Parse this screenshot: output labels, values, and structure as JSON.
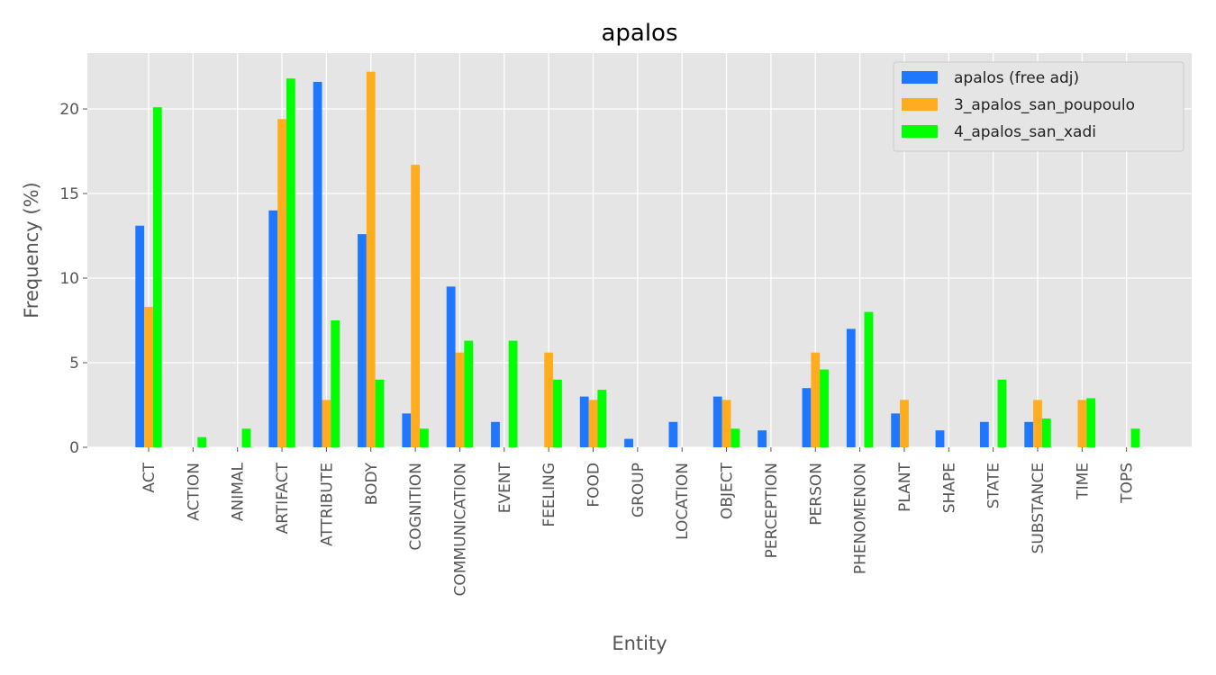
{
  "chart_data": {
    "type": "bar",
    "title": "apalos",
    "xlabel": "Entity",
    "ylabel": "Frequency (%)",
    "ylim": [
      0,
      23.3
    ],
    "yticks": [
      0,
      5,
      10,
      15,
      20
    ],
    "grid": true,
    "legend_position": "top-right",
    "categories": [
      "ACT",
      "ACTION",
      "ANIMAL",
      "ARTIFACT",
      "ATTRIBUTE",
      "BODY",
      "COGNITION",
      "COMMUNICATION",
      "EVENT",
      "FEELING",
      "FOOD",
      "GROUP",
      "LOCATION",
      "OBJECT",
      "PERCEPTION",
      "PERSON",
      "PHENOMENON",
      "PLANT",
      "SHAPE",
      "STATE",
      "SUBSTANCE",
      "TIME",
      "TOPS"
    ],
    "series": [
      {
        "name": "apalos (free adj)",
        "color": "#1f77ff",
        "values": [
          13.1,
          0,
          0,
          14.0,
          21.6,
          12.6,
          2.0,
          9.5,
          1.5,
          0,
          3.0,
          0.5,
          1.5,
          3.0,
          1.0,
          3.5,
          7.0,
          2.0,
          1.0,
          1.5,
          1.5,
          0,
          0
        ]
      },
      {
        "name": "3_apalos_san_poupoulo",
        "color": "#ffad1f",
        "values": [
          8.3,
          0,
          0,
          19.4,
          2.8,
          22.2,
          16.7,
          5.6,
          0,
          5.6,
          2.8,
          0,
          0,
          2.8,
          0,
          5.6,
          0,
          2.8,
          0,
          0,
          2.8,
          2.8,
          0
        ]
      },
      {
        "name": "4_apalos_san_xadi",
        "color": "#00ff00",
        "values": [
          20.1,
          0.6,
          1.1,
          21.8,
          7.5,
          4.0,
          1.1,
          6.3,
          6.3,
          4.0,
          3.4,
          0,
          0,
          1.1,
          0,
          4.6,
          8.0,
          0,
          0,
          4.0,
          1.7,
          2.9,
          1.1
        ]
      }
    ]
  }
}
